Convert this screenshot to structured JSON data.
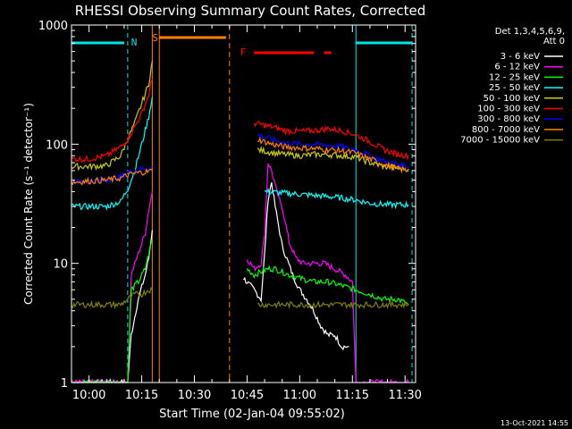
{
  "chart_data": {
    "type": "line",
    "title": "RHESSI Observing Summary Count Rates, Corrected",
    "ylabel": "Corrected Count Rate (s⁻¹ detector⁻¹)",
    "xlabel": "Start Time (02-Jan-04 09:55:02)",
    "yscale": "log",
    "ylim": [
      1,
      1000
    ],
    "y_ticks": [
      "1",
      "10",
      "100",
      "1000"
    ],
    "x_ticks": [
      "10:00",
      "10:15",
      "10:30",
      "10:45",
      "11:00",
      "11:15",
      "11:30"
    ],
    "x_tick_minutes": [
      0,
      15,
      30,
      45,
      60,
      75,
      90
    ],
    "xlim_minutes": [
      -5,
      93
    ],
    "legend_header": [
      "Det 1,3,4,5,6,9,",
      "Att 0"
    ],
    "legend_position": "right",
    "timestamp": "13-Oct-2021 14:55",
    "markers": {
      "night_label": "N",
      "saa_label": "S",
      "flare_label": "F",
      "night_color": "#00e5e5",
      "saa_color": "#ff7f00",
      "flare_color": "#ff0000",
      "cyan_solid_minutes": [
        -5,
        76
      ],
      "cyan_dashed_minutes": [
        11,
        92
      ],
      "saa_solid_minutes": [
        18,
        20
      ],
      "saa_dashed_minutes": [
        40
      ],
      "night_bars": [
        [
          -5,
          10
        ],
        [
          76,
          92
        ]
      ],
      "saa_bar": [
        20,
        39
      ],
      "flare_bars": [
        [
          47,
          64
        ],
        [
          67,
          69
        ]
      ]
    },
    "data_gaps_minutes": [
      [
        20,
        43
      ]
    ],
    "series": [
      {
        "name": "3 - 6 keV",
        "color": "#ffffff",
        "x": [
          -5,
          11,
          12,
          14,
          16,
          17,
          18,
          43,
          44,
          47,
          49,
          50,
          51,
          52,
          53,
          55,
          58,
          60,
          62,
          64,
          66,
          68,
          70,
          72,
          74
        ],
        "y": [
          1.0,
          1.0,
          2.5,
          5.0,
          8.0,
          11.0,
          19.0,
          null,
          7.5,
          6.0,
          5.0,
          12.0,
          35.0,
          48.0,
          30.0,
          14.0,
          8.0,
          6.0,
          5.0,
          4.0,
          3.0,
          2.5,
          2.5,
          2.0,
          2.0
        ]
      },
      {
        "name": "6 - 12 keV",
        "color": "#ff00ff",
        "x": [
          -5,
          11,
          12,
          14,
          16,
          17,
          18,
          43,
          45,
          47,
          49,
          50,
          51,
          52,
          53,
          54,
          55,
          57,
          59,
          61,
          63,
          65,
          67,
          70,
          73,
          75,
          76,
          77,
          79,
          81,
          83,
          85,
          88,
          91
        ],
        "y": [
          1.0,
          1.0,
          8.0,
          12.0,
          18.0,
          28.0,
          40.0,
          null,
          11.0,
          9.0,
          10.0,
          18.0,
          70.0,
          60.0,
          45.0,
          35.0,
          30.0,
          15.0,
          11.0,
          10.0,
          10.0,
          10.0,
          10.0,
          9.0,
          8.0,
          7.0,
          1.0,
          1.0,
          1.0,
          1.0,
          1.0,
          1.0,
          1.0,
          1.0
        ]
      },
      {
        "name": "12 - 25 keV",
        "color": "#00ff00",
        "x": [
          -5,
          11,
          12,
          14,
          16,
          17,
          18,
          43,
          45,
          47,
          49,
          51,
          53,
          55,
          57,
          60,
          64,
          68,
          72,
          76,
          80,
          84,
          88,
          91
        ],
        "y": [
          1.0,
          1.0,
          6.0,
          7.0,
          9.0,
          12.0,
          16.0,
          null,
          9.0,
          8.0,
          8.5,
          9.0,
          9.0,
          8.5,
          8.0,
          7.5,
          7.0,
          7.0,
          6.5,
          6.0,
          5.5,
          5.0,
          5.0,
          4.5
        ]
      },
      {
        "name": "25 - 50 keV",
        "color": "#00ffff",
        "x": [
          -5,
          0,
          5,
          9,
          11,
          13,
          15,
          17,
          18,
          43,
          50,
          60,
          70,
          76,
          80,
          85,
          91
        ],
        "y": [
          30,
          30,
          30,
          33,
          42,
          60,
          100,
          170,
          250,
          null,
          40,
          38,
          36,
          34,
          32,
          31,
          31
        ]
      },
      {
        "name": "50 - 100 keV",
        "color": "#cccc00",
        "x": [
          -5,
          0,
          5,
          9,
          11,
          13,
          15,
          17,
          18,
          43,
          48,
          52,
          56,
          60,
          64,
          68,
          72,
          76,
          80,
          84,
          88,
          91
        ],
        "y": [
          65,
          65,
          66,
          80,
          110,
          150,
          220,
          320,
          500,
          null,
          90,
          85,
          82,
          80,
          82,
          82,
          80,
          78,
          70,
          65,
          63,
          62
        ]
      },
      {
        "name": "100 - 300 keV",
        "color": "#ff0000",
        "x": [
          -5,
          0,
          5,
          9,
          11,
          13,
          15,
          17,
          18,
          43,
          47,
          52,
          56,
          60,
          64,
          68,
          72,
          76,
          80,
          84,
          88,
          91
        ],
        "y": [
          75,
          75,
          80,
          95,
          110,
          140,
          180,
          260,
          350,
          null,
          150,
          140,
          130,
          128,
          130,
          135,
          130,
          120,
          105,
          90,
          82,
          80
        ]
      },
      {
        "name": "300 - 800 keV",
        "color": "#0000ff",
        "x": [
          -5,
          0,
          5,
          9,
          11,
          13,
          15,
          17,
          18,
          43,
          48,
          52,
          56,
          60,
          64,
          68,
          72,
          76,
          80,
          84,
          88,
          91
        ],
        "y": [
          48,
          49,
          50,
          53,
          58,
          60,
          62,
          63,
          64,
          null,
          120,
          110,
          102,
          100,
          100,
          98,
          95,
          90,
          80,
          72,
          68,
          65
        ]
      },
      {
        "name": "800 - 7000 keV",
        "color": "#ff7f00",
        "x": [
          -5,
          0,
          5,
          9,
          11,
          13,
          15,
          17,
          18,
          43,
          48,
          52,
          56,
          60,
          64,
          68,
          72,
          76,
          80,
          84,
          88,
          91
        ],
        "y": [
          48,
          49,
          50,
          52,
          55,
          57,
          58,
          59,
          60,
          null,
          110,
          100,
          95,
          93,
          92,
          90,
          88,
          84,
          75,
          68,
          62,
          60
        ]
      },
      {
        "name": "7000 - 15000 keV",
        "color": "#808000",
        "x": [
          -5,
          0,
          5,
          9,
          11,
          13,
          15,
          17,
          18,
          43,
          48,
          53,
          58,
          63,
          68,
          73,
          78,
          83,
          88,
          91
        ],
        "y": [
          4.5,
          4.5,
          4.5,
          4.5,
          5.0,
          5.5,
          5.5,
          6.0,
          6.0,
          null,
          4.5,
          4.5,
          4.5,
          4.5,
          4.5,
          4.5,
          4.5,
          4.5,
          4.5,
          4.5
        ]
      }
    ]
  }
}
